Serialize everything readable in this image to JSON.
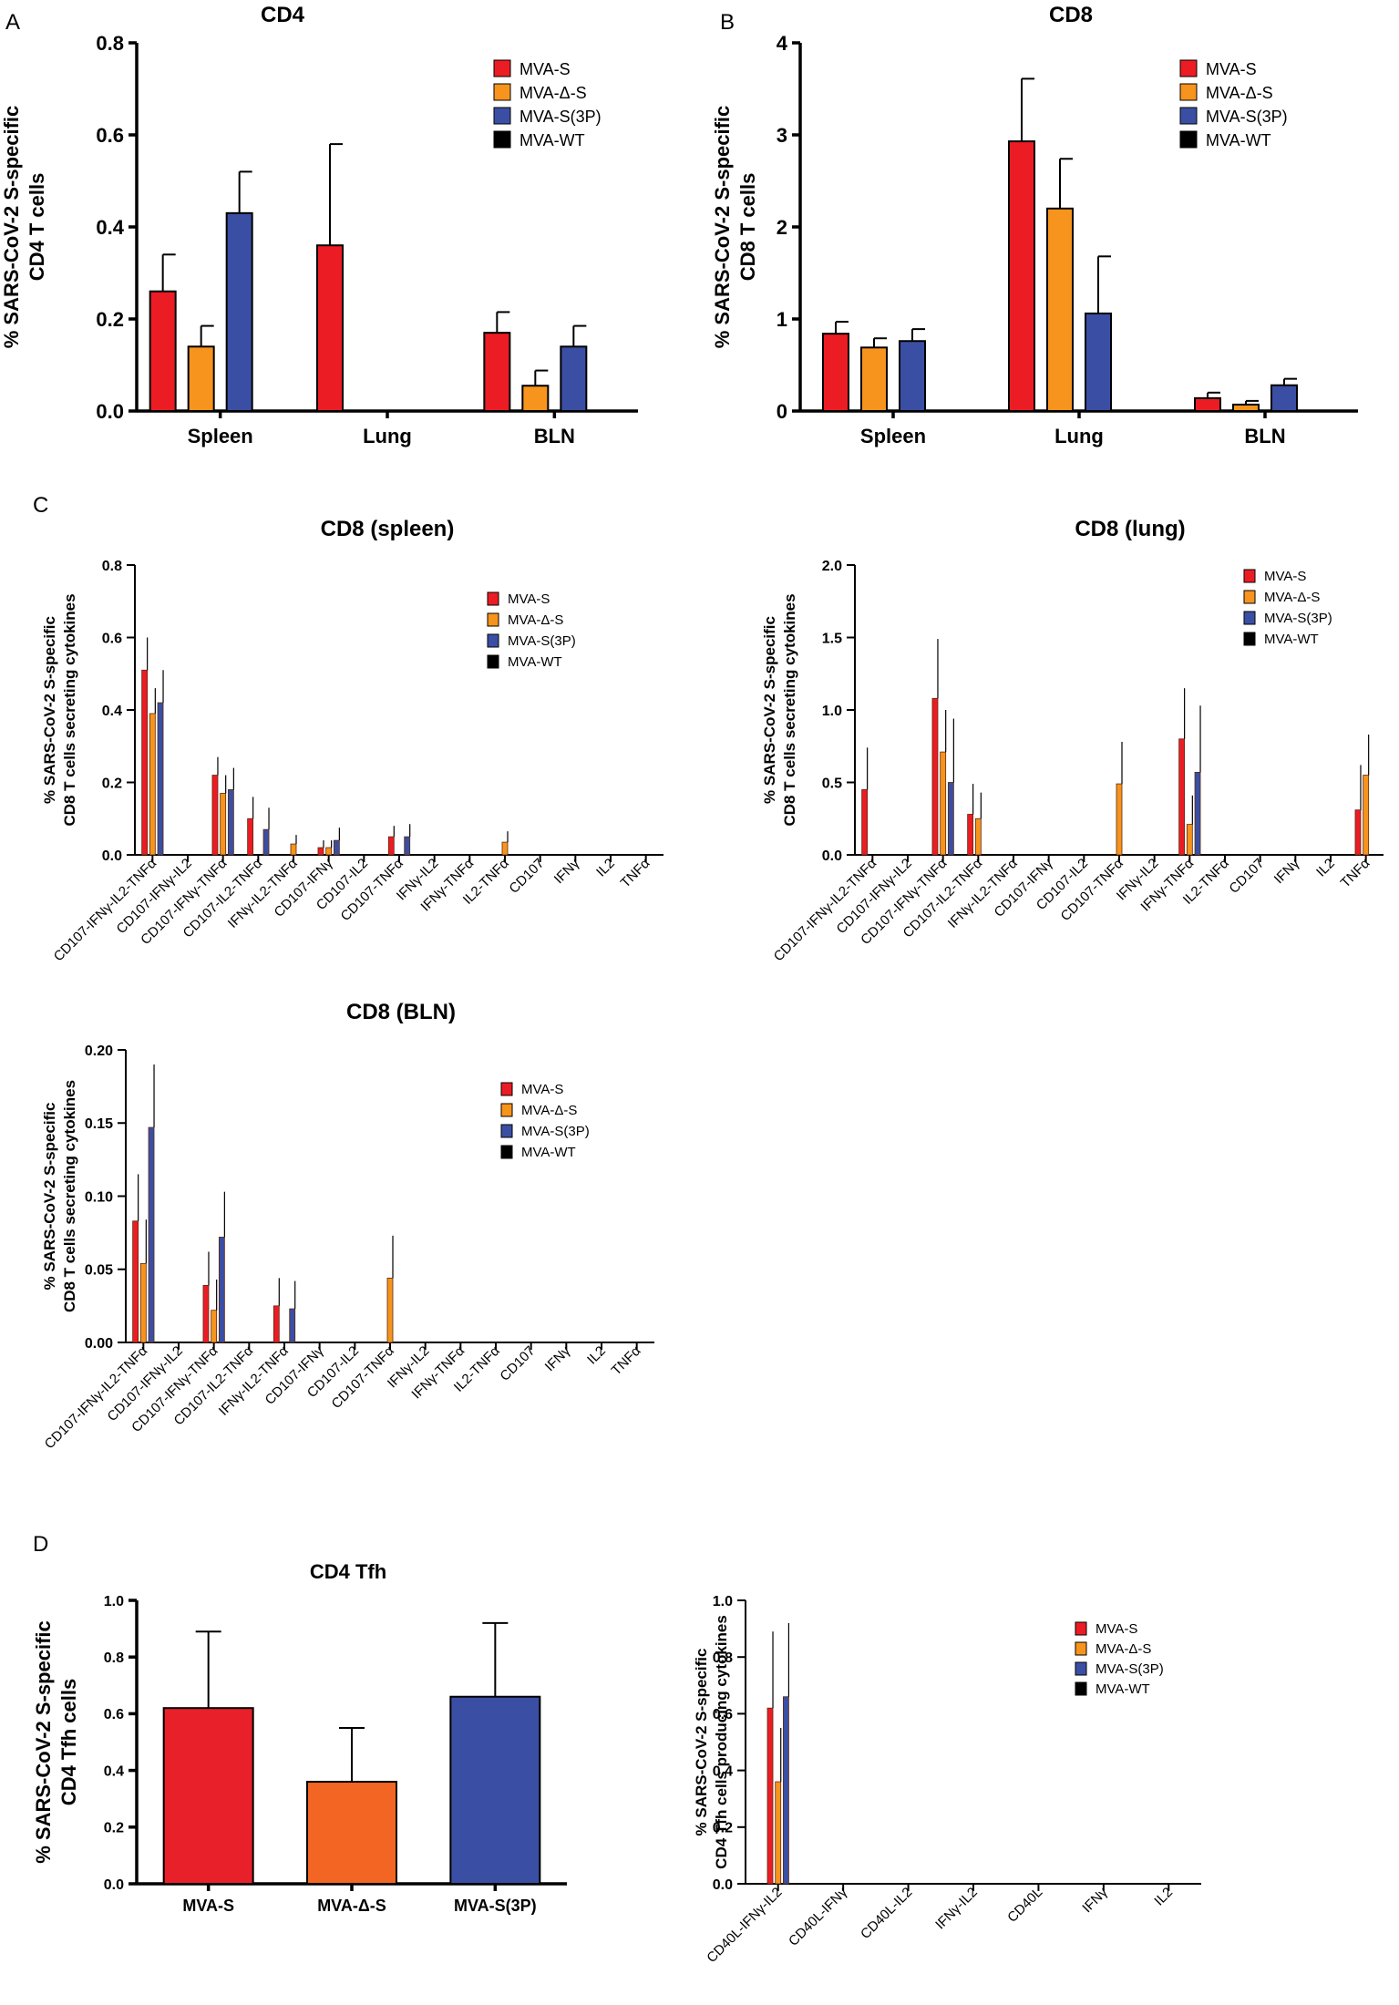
{
  "panel_labels": [
    "A",
    "B",
    "C",
    "D"
  ],
  "colors": {
    "MVA-S": "#e8202a",
    "MVA-Δ-S": "#f26522",
    "MVA-S(3P)": "#3a4fa3",
    "MVA-WT": "#000000",
    "MVA-S_solid": "#ec1c24",
    "MVA-Δ-S_solid": "#f7941d"
  },
  "chart_data": [
    {
      "id": "A",
      "type": "bar",
      "title": "CD4",
      "ylabel": [
        "% SARS-CoV-2 S-specific",
        "CD4 T cells"
      ],
      "ylim": [
        0,
        0.8
      ],
      "yticks": [
        "0.0",
        "0.2",
        "0.4",
        "0.6",
        "0.8"
      ],
      "categories": [
        "Spleen",
        "Lung",
        "BLN"
      ],
      "legend": [
        "MVA-S",
        "MVA-Δ-S",
        "MVA-S(3P)",
        "MVA-WT"
      ],
      "series": [
        {
          "name": "MVA-S",
          "values": [
            0.26,
            0.36,
            0.17
          ],
          "errors": [
            0.08,
            0.22,
            0.045
          ]
        },
        {
          "name": "MVA-Δ-S",
          "values": [
            0.14,
            0,
            0.055
          ],
          "errors": [
            0.045,
            0,
            0.033
          ]
        },
        {
          "name": "MVA-S(3P)",
          "values": [
            0.43,
            0,
            0.14
          ],
          "errors": [
            0.09,
            0,
            0.045
          ]
        },
        {
          "name": "MVA-WT",
          "values": [
            0,
            0,
            0
          ],
          "errors": [
            0,
            0,
            0
          ]
        }
      ]
    },
    {
      "id": "B",
      "type": "bar",
      "title": "CD8",
      "ylabel": [
        "% SARS-CoV-2 S-specific",
        "CD8 T cells"
      ],
      "ylim": [
        0,
        4
      ],
      "yticks": [
        "0",
        "1",
        "2",
        "3",
        "4"
      ],
      "categories": [
        "Spleen",
        "Lung",
        "BLN"
      ],
      "legend": [
        "MVA-S",
        "MVA-Δ-S",
        "MVA-S(3P)",
        "MVA-WT"
      ],
      "series": [
        {
          "name": "MVA-S",
          "values": [
            0.84,
            2.93,
            0.14
          ],
          "errors": [
            0.13,
            0.68,
            0.06
          ]
        },
        {
          "name": "MVA-Δ-S",
          "values": [
            0.69,
            2.2,
            0.07
          ],
          "errors": [
            0.1,
            0.54,
            0.04
          ]
        },
        {
          "name": "MVA-S(3P)",
          "values": [
            0.76,
            1.06,
            0.28
          ],
          "errors": [
            0.13,
            0.62,
            0.07
          ]
        },
        {
          "name": "MVA-WT",
          "values": [
            0,
            0,
            0
          ],
          "errors": [
            0,
            0,
            0
          ]
        }
      ]
    },
    {
      "id": "C1",
      "type": "bar",
      "title": "CD8 (spleen)",
      "ylabel": [
        "% SARS-CoV-2 S-specific",
        "CD8 T cells secreting cytokines"
      ],
      "ylim": [
        0,
        0.8
      ],
      "yticks": [
        "0.0",
        "0.2",
        "0.4",
        "0.6",
        "0.8"
      ],
      "categories": [
        "CD107-IFNγ-IL2-TNFα",
        "CD107-IFNγ-IL2",
        "CD107-IFNγ-TNFα",
        "CD107-IL2-TNFα",
        "IFNγ-IL2-TNFα",
        "CD107-IFNγ",
        "CD107-IL2",
        "CD107-TNFα",
        "IFNγ-IL2",
        "IFNγ-TNFα",
        "IL2-TNFα",
        "CD107",
        "IFNγ",
        "IL2",
        "TNFα"
      ],
      "legend": [
        "MVA-S",
        "MVA-Δ-S",
        "MVA-S(3P)",
        "MVA-WT"
      ],
      "series": [
        {
          "name": "MVA-S",
          "values": [
            0.51,
            0,
            0.22,
            0.1,
            0,
            0.02,
            0,
            0.05,
            0,
            0,
            0,
            0,
            0,
            0,
            0
          ],
          "errors": [
            0.09,
            0,
            0.05,
            0.06,
            0,
            0.02,
            0,
            0.03,
            0,
            0,
            0,
            0,
            0,
            0,
            0
          ]
        },
        {
          "name": "MVA-Δ-S",
          "values": [
            0.39,
            0,
            0.17,
            0,
            0.03,
            0.02,
            0,
            0,
            0,
            0,
            0.035,
            0,
            0,
            0,
            0
          ],
          "errors": [
            0.07,
            0,
            0.05,
            0,
            0.025,
            0.02,
            0,
            0,
            0,
            0,
            0.03,
            0,
            0,
            0,
            0
          ]
        },
        {
          "name": "MVA-S(3P)",
          "values": [
            0.42,
            0,
            0.18,
            0.07,
            0,
            0.04,
            0,
            0.05,
            0,
            0,
            0,
            0,
            0,
            0,
            0
          ],
          "errors": [
            0.09,
            0,
            0.06,
            0.06,
            0,
            0.035,
            0,
            0.035,
            0,
            0,
            0,
            0,
            0,
            0,
            0
          ]
        },
        {
          "name": "MVA-WT",
          "values": [
            0,
            0,
            0,
            0,
            0,
            0,
            0,
            0,
            0,
            0,
            0,
            0,
            0,
            0,
            0
          ],
          "errors": [
            0,
            0,
            0,
            0,
            0,
            0,
            0,
            0,
            0,
            0,
            0,
            0,
            0,
            0,
            0
          ]
        }
      ]
    },
    {
      "id": "C2",
      "type": "bar",
      "title": "CD8 (lung)",
      "ylabel": [
        "% SARS-CoV-2 S-specific",
        "CD8 T cells secreting cytokines"
      ],
      "ylim": [
        0,
        2
      ],
      "yticks": [
        "0.0",
        "0.5",
        "1.0",
        "1.5",
        "2.0"
      ],
      "categories": [
        "CD107-IFNγ-IL2-TNFα",
        "CD107-IFNγ-IL2",
        "CD107-IFNγ-TNFα",
        "CD107-IL2-TNFα",
        "IFNγ-IL2-TNFα",
        "CD107-IFNγ",
        "CD107-IL2",
        "CD107-TNFα",
        "IFNγ-IL2",
        "IFNγ-TNFα",
        "IL2-TNFα",
        "CD107",
        "IFNγ",
        "IL2",
        "TNFα"
      ],
      "legend": [
        "MVA-S",
        "MVA-Δ-S",
        "MVA-S(3P)",
        "MVA-WT"
      ],
      "series": [
        {
          "name": "MVA-S",
          "values": [
            0.45,
            0,
            1.08,
            0.28,
            0,
            0,
            0,
            0,
            0,
            0.8,
            0,
            0,
            0,
            0,
            0.31
          ],
          "errors": [
            0.29,
            0,
            0.41,
            0.21,
            0,
            0,
            0,
            0,
            0,
            0.35,
            0,
            0,
            0,
            0,
            0.31
          ]
        },
        {
          "name": "MVA-Δ-S",
          "values": [
            0,
            0,
            0.71,
            0.25,
            0,
            0,
            0,
            0.49,
            0,
            0.21,
            0,
            0,
            0,
            0,
            0.55
          ],
          "errors": [
            0,
            0,
            0.29,
            0.18,
            0,
            0,
            0,
            0.29,
            0,
            0.2,
            0,
            0,
            0,
            0,
            0.28
          ]
        },
        {
          "name": "MVA-S(3P)",
          "values": [
            0,
            0,
            0.5,
            0,
            0,
            0,
            0,
            0,
            0,
            0.57,
            0,
            0,
            0,
            0,
            0
          ],
          "errors": [
            0,
            0,
            0.44,
            0,
            0,
            0,
            0,
            0,
            0,
            0.46,
            0,
            0,
            0,
            0,
            0
          ]
        },
        {
          "name": "MVA-WT",
          "values": [
            0,
            0,
            0,
            0,
            0,
            0,
            0,
            0,
            0,
            0,
            0,
            0,
            0,
            0,
            0
          ],
          "errors": [
            0,
            0,
            0,
            0,
            0,
            0,
            0,
            0,
            0,
            0,
            0,
            0,
            0,
            0,
            0
          ]
        }
      ]
    },
    {
      "id": "C3",
      "type": "bar",
      "title": "CD8 (BLN)",
      "ylabel": [
        "% SARS-CoV-2 S-specific",
        "CD8 T cells secreting cytokines"
      ],
      "ylim": [
        0,
        0.2
      ],
      "yticks": [
        "0.00",
        "0.05",
        "0.10",
        "0.15",
        "0.20"
      ],
      "categories": [
        "CD107-IFNγ-IL2-TNFα",
        "CD107-IFNγ-IL2",
        "CD107-IFNγ-TNFα",
        "CD107-IL2-TNFα",
        "IFNγ-IL2-TNFα",
        "CD107-IFNγ",
        "CD107-IL2",
        "CD107-TNFα",
        "IFNγ-IL2",
        "IFNγ-TNFα",
        "IL2-TNFα",
        "CD107",
        "IFNγ",
        "IL2",
        "TNFα"
      ],
      "legend": [
        "MVA-S",
        "MVA-Δ-S",
        "MVA-S(3P)",
        "MVA-WT"
      ],
      "series": [
        {
          "name": "MVA-S",
          "values": [
            0.083,
            0,
            0.039,
            0,
            0.025,
            0,
            0,
            0,
            0,
            0,
            0,
            0,
            0,
            0,
            0
          ],
          "errors": [
            0.032,
            0,
            0.023,
            0,
            0.019,
            0,
            0,
            0,
            0,
            0,
            0,
            0,
            0,
            0,
            0
          ]
        },
        {
          "name": "MVA-Δ-S",
          "values": [
            0.054,
            0,
            0.022,
            0,
            0,
            0,
            0,
            0.044,
            0,
            0,
            0,
            0,
            0,
            0,
            0
          ],
          "errors": [
            0.03,
            0,
            0.021,
            0,
            0,
            0,
            0,
            0.029,
            0,
            0,
            0,
            0,
            0,
            0,
            0
          ]
        },
        {
          "name": "MVA-S(3P)",
          "values": [
            0.147,
            0,
            0.072,
            0,
            0.023,
            0,
            0,
            0,
            0,
            0,
            0,
            0,
            0,
            0,
            0
          ],
          "errors": [
            0.043,
            0,
            0.031,
            0,
            0.019,
            0,
            0,
            0,
            0,
            0,
            0,
            0,
            0,
            0,
            0
          ]
        },
        {
          "name": "MVA-WT",
          "values": [
            0,
            0,
            0,
            0,
            0,
            0,
            0,
            0,
            0,
            0,
            0,
            0,
            0,
            0,
            0
          ],
          "errors": [
            0,
            0,
            0,
            0,
            0,
            0,
            0,
            0,
            0,
            0,
            0,
            0,
            0,
            0,
            0
          ]
        }
      ]
    },
    {
      "id": "D1",
      "type": "bar",
      "title": "CD4 Tfh",
      "ylabel": [
        "% SARS-CoV-2 S-specific",
        "CD4 Tfh cells"
      ],
      "ylim": [
        0,
        1
      ],
      "yticks": [
        "0.0",
        "0.2",
        "0.4",
        "0.6",
        "0.8",
        "1.0"
      ],
      "categories": [
        "MVA-S",
        "MVA-Δ-S",
        "MVA-S(3P)"
      ],
      "series": [
        {
          "name": "value",
          "values": [
            0.62,
            0.36,
            0.66
          ],
          "errors": [
            0.27,
            0.19,
            0.26
          ],
          "colors": [
            "#e8202a",
            "#f26522",
            "#3a4fa3"
          ]
        }
      ]
    },
    {
      "id": "D2",
      "type": "bar",
      "title": "",
      "ylabel": [
        "% SARS-CoV-2 S-specific",
        "CD4 Tfh cells producing cytokines"
      ],
      "ylim": [
        0,
        1
      ],
      "yticks": [
        "0.0",
        "0.2",
        "0.4",
        "0.6",
        "0.8",
        "1.0"
      ],
      "categories": [
        "CD40L-IFNγ-IL2",
        "CD40L-IFNγ",
        "CD40L-IL2",
        "IFNγ-IL2",
        "CD40L",
        "IFNγ",
        "IL2"
      ],
      "legend": [
        "MVA-S",
        "MVA-Δ-S",
        "MVA-S(3P)",
        "MVA-WT"
      ],
      "series": [
        {
          "name": "MVA-S",
          "values": [
            0.62,
            0,
            0,
            0,
            0,
            0,
            0
          ],
          "errors": [
            0.27,
            0,
            0,
            0,
            0,
            0,
            0
          ]
        },
        {
          "name": "MVA-Δ-S",
          "values": [
            0.36,
            0,
            0,
            0,
            0,
            0,
            0
          ],
          "errors": [
            0.19,
            0,
            0,
            0,
            0,
            0,
            0
          ]
        },
        {
          "name": "MVA-S(3P)",
          "values": [
            0.66,
            0,
            0,
            0,
            0,
            0,
            0
          ],
          "errors": [
            0.26,
            0,
            0,
            0,
            0,
            0,
            0
          ]
        },
        {
          "name": "MVA-WT",
          "values": [
            0,
            0,
            0,
            0,
            0,
            0,
            0
          ],
          "errors": [
            0,
            0,
            0,
            0,
            0,
            0,
            0
          ]
        }
      ]
    }
  ]
}
